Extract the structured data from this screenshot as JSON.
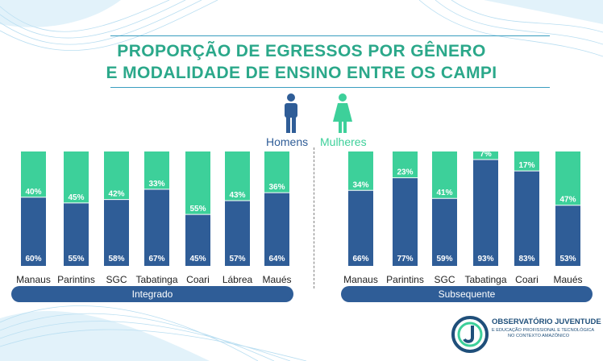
{
  "header": {
    "title_line1": "PROPORÇÃO DE EGRESSOS POR GÊNERO",
    "title_line2": "E MODALIDADE DE ENSINO ENTRE OS CAMPI"
  },
  "legend": {
    "men_label": "Homens",
    "women_label": "Mulheres",
    "men_icon": "man-icon",
    "women_icon": "woman-icon"
  },
  "colors": {
    "men": "#2f5d97",
    "women": "#3dd09a",
    "title": "#2ba88a",
    "pill": "#2f5d97"
  },
  "chart_data": [
    {
      "type": "bar",
      "stacked": true,
      "group": "Integrado",
      "categories": [
        "Manaus",
        "Parintins",
        "SGC",
        "Tabatinga",
        "Coari",
        "Lábrea",
        "Maués"
      ],
      "series": [
        {
          "name": "Homens",
          "values": [
            60,
            55,
            58,
            67,
            45,
            57,
            64
          ]
        },
        {
          "name": "Mulheres",
          "values": [
            40,
            45,
            42,
            33,
            55,
            43,
            36
          ]
        }
      ],
      "value_suffix": "%",
      "ylim": [
        0,
        100
      ]
    },
    {
      "type": "bar",
      "stacked": true,
      "group": "Subsequente",
      "categories": [
        "Manaus",
        "Parintins",
        "SGC",
        "Tabatinga",
        "Coari",
        "Maués"
      ],
      "series": [
        {
          "name": "Homens",
          "values": [
            66,
            77,
            59,
            93,
            83,
            53
          ]
        },
        {
          "name": "Mulheres",
          "values": [
            34,
            23,
            41,
            7,
            17,
            47
          ]
        }
      ],
      "value_suffix": "%",
      "ylim": [
        0,
        100
      ]
    }
  ],
  "logo": {
    "line1": "OBSERVATÓRIO JUVENTUDE",
    "line2": "E EDUCAÇÃO PROFISSIONAL E TECNOLÓGICA",
    "line3": "NO CONTEXTO AMAZÔNICO",
    "icon": "observatorio-logo-icon"
  }
}
